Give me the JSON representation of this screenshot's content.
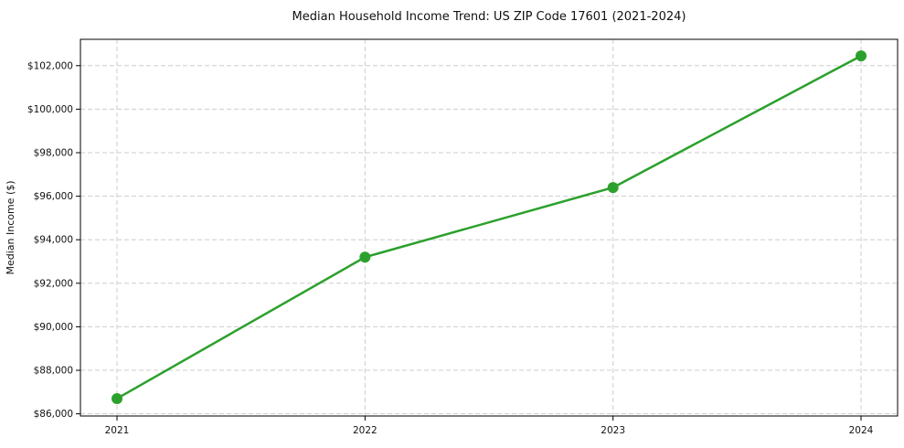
{
  "page": {
    "background": "#ffffff"
  },
  "chart_data": {
    "type": "line",
    "title": "Median Household Income Trend: US ZIP Code 17601 (2021-2024)",
    "xlabel": "",
    "ylabel": "Median Income ($)",
    "x": [
      2021,
      2022,
      2023,
      2024
    ],
    "x_tick_labels": [
      "2021",
      "2022",
      "2023",
      "2024"
    ],
    "series": [
      {
        "name": "median-household-income",
        "values": [
          86700,
          93200,
          96400,
          102450
        ],
        "color": "#2ca02c",
        "marker": "circle"
      }
    ],
    "y_ticks": [
      86000,
      88000,
      90000,
      92000,
      94000,
      96000,
      98000,
      100000,
      102000
    ],
    "y_tick_labels": [
      "$86,000",
      "$88,000",
      "$90,000",
      "$92,000",
      "$94,000",
      "$96,000",
      "$98,000",
      "$100,000",
      "$102,000"
    ],
    "ylim": [
      85900,
      103210
    ],
    "grid": true,
    "grid_color": "#cdcdcd",
    "grid_style": "dashed",
    "axis_color": "#000000",
    "tick_label_color": "#111111",
    "legend_position": "none"
  }
}
